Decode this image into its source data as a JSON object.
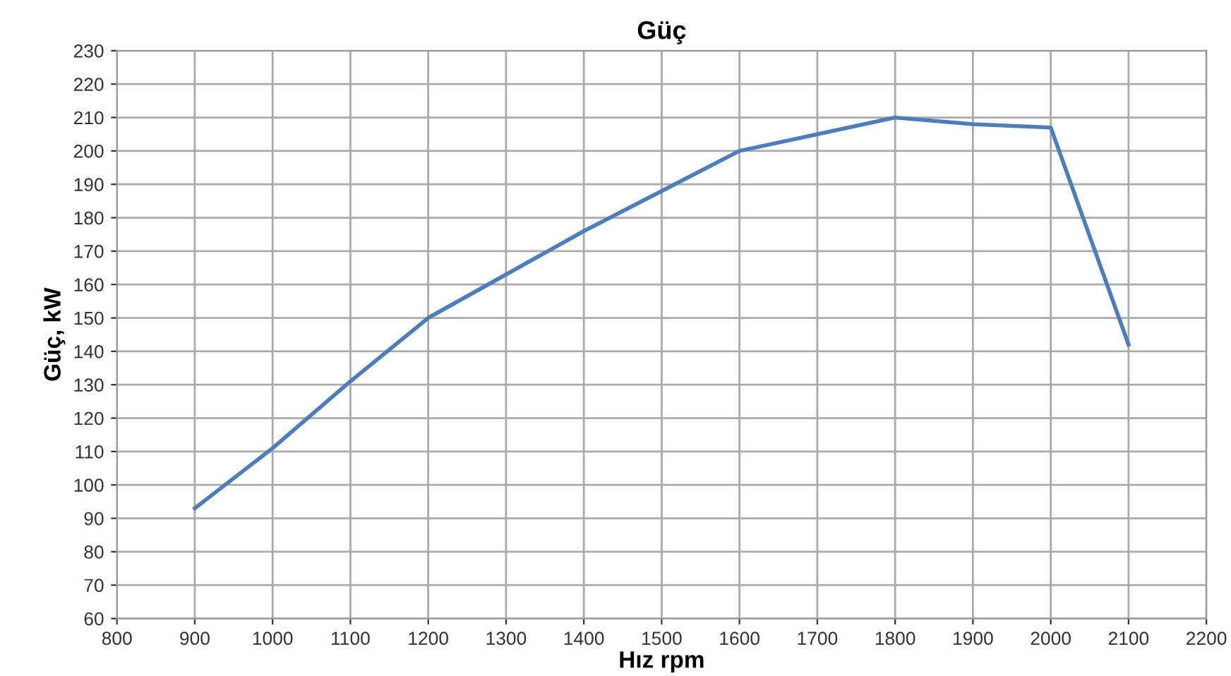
{
  "chart_data": {
    "type": "line",
    "title": "Güç",
    "xlabel": "Hız rpm",
    "ylabel": "Güç, kW",
    "x": [
      900,
      1000,
      1100,
      1200,
      1300,
      1400,
      1500,
      1600,
      1700,
      1800,
      1900,
      2000,
      2100
    ],
    "series": [
      {
        "color": "#4a7ebf",
        "values": [
          93,
          111,
          131,
          150,
          163,
          176,
          188,
          200,
          205,
          210,
          208,
          207,
          142
        ]
      }
    ],
    "xlim": [
      800,
      2200
    ],
    "xticks": [
      800,
      900,
      1000,
      1100,
      1200,
      1300,
      1400,
      1500,
      1600,
      1700,
      1800,
      1900,
      2000,
      2100,
      2200
    ],
    "ylim": [
      60,
      230
    ],
    "yticks": [
      60,
      70,
      80,
      90,
      100,
      110,
      120,
      130,
      140,
      150,
      160,
      170,
      180,
      190,
      200,
      210,
      220,
      230
    ],
    "grid": true,
    "line_style": "solid"
  }
}
